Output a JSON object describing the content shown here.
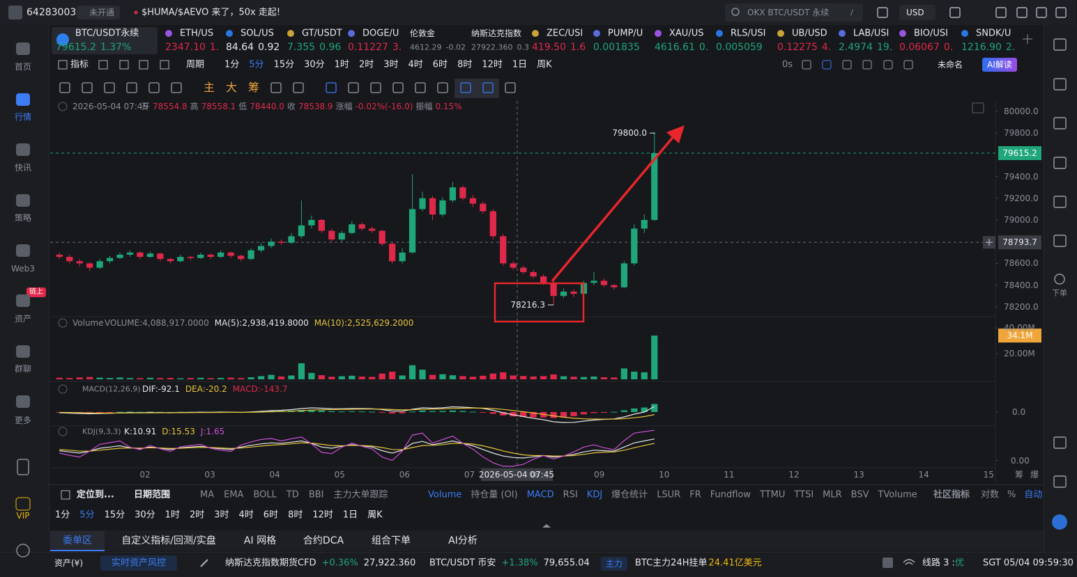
{
  "topbar": {
    "account": "64283003",
    "status": "未开通",
    "news": "$HUMA/$AEVO 来了，50x 走起!",
    "search": "OKX BTC/USDT 永续",
    "search_key": "/",
    "currency": "USD"
  },
  "sidebar": {
    "items": [
      "首页",
      "行情",
      "快讯",
      "策略",
      "Web3",
      "资产",
      "群聊",
      "更多",
      "VIP"
    ],
    "badge": "链上"
  },
  "tickers": [
    {
      "name": "BTC/USDT永续",
      "price": "79615.2",
      "change": "1.37%",
      "color": "#1fa67a"
    },
    {
      "name": "ETH/US",
      "price": "2347.10",
      "change": "1.",
      "color": "#e0294a"
    },
    {
      "name": "SOL/US",
      "price": "84.64",
      "change": "0.92",
      "color": "#e6e8eb"
    },
    {
      "name": "GT/USDT",
      "price": "7.355",
      "change": "0.96",
      "color": "#1fa67a"
    },
    {
      "name": "DOGE/U",
      "price": "0.11227",
      "change": "3.",
      "color": "#e0294a"
    },
    {
      "name": "伦敦金",
      "price": "4612.29",
      "change": "-0.02",
      "color": "#8a8f98"
    },
    {
      "name": "纳斯达克指数",
      "price": "27922.360",
      "change": "0.3",
      "color": "#8a8f98"
    },
    {
      "name": "ZEC/USI",
      "price": "419.50",
      "change": "1.6",
      "color": "#e0294a"
    },
    {
      "name": "PUMP/U",
      "price": "0.001835",
      "change": "",
      "color": "#1fa67a"
    },
    {
      "name": "XAU/US",
      "price": "4616.61",
      "change": "0.",
      "color": "#1fa67a"
    },
    {
      "name": "RLS/USI",
      "price": "0.005059",
      "change": "",
      "color": "#1fa67a"
    },
    {
      "name": "UB/USD",
      "price": "0.12275",
      "change": "4.",
      "color": "#e0294a"
    },
    {
      "name": "LAB/USI",
      "price": "2.4974",
      "change": "19.",
      "color": "#1fa67a"
    },
    {
      "name": "BIO/USI",
      "price": "0.06067",
      "change": "0.",
      "color": "#e0294a"
    },
    {
      "name": "SNDK/U",
      "price": "1216.90",
      "change": "2.",
      "color": "#1fa67a"
    }
  ],
  "period_bar": {
    "indicator": "指标",
    "period": "周期",
    "periods": [
      "1分",
      "5分",
      "15分",
      "30分",
      "1时",
      "2时",
      "3时",
      "4时",
      "6时",
      "8时",
      "12时",
      "1日",
      "周K"
    ],
    "refresh": "0s",
    "layout": "未命名",
    "ai": "AI解读"
  },
  "draw_tools": [
    "主",
    "大",
    "筹"
  ],
  "ohlc_header": {
    "time": "2026-05-04 07:45",
    "fields": [
      [
        "开",
        "78554.8"
      ],
      [
        "高",
        "78558.1"
      ],
      [
        "低",
        "78440.0"
      ],
      [
        "收",
        "78538.9"
      ],
      [
        "涨幅",
        "-0.02%(-16.0)"
      ],
      [
        "振幅",
        "0.15%"
      ]
    ]
  },
  "chart_data": {
    "type": "candlestick",
    "up_color": "#1fa67a",
    "down_color": "#e0294a",
    "ohlc": [
      [
        78680,
        78700,
        78640,
        78660
      ],
      [
        78660,
        78680,
        78600,
        78620
      ],
      [
        78620,
        78640,
        78570,
        78600
      ],
      [
        78600,
        78610,
        78530,
        78560
      ],
      [
        78560,
        78640,
        78550,
        78620
      ],
      [
        78620,
        78670,
        78600,
        78650
      ],
      [
        78650,
        78700,
        78640,
        78680
      ],
      [
        78680,
        78720,
        78660,
        78700
      ],
      [
        78700,
        78710,
        78640,
        78660
      ],
      [
        78660,
        78710,
        78650,
        78690
      ],
      [
        78690,
        78700,
        78620,
        78640
      ],
      [
        78640,
        78650,
        78600,
        78620
      ],
      [
        78620,
        78680,
        78610,
        78660
      ],
      [
        78660,
        78670,
        78630,
        78650
      ],
      [
        78650,
        78700,
        78640,
        78680
      ],
      [
        78680,
        78690,
        78640,
        78660
      ],
      [
        78660,
        78720,
        78650,
        78700
      ],
      [
        78700,
        78710,
        78650,
        78670
      ],
      [
        78670,
        78680,
        78620,
        78640
      ],
      [
        78640,
        78740,
        78630,
        78720
      ],
      [
        78720,
        78790,
        78700,
        78760
      ],
      [
        78760,
        78830,
        78740,
        78800
      ],
      [
        78800,
        78820,
        78770,
        78790
      ],
      [
        78790,
        78880,
        78780,
        78850
      ],
      [
        78850,
        79180,
        78830,
        78950
      ],
      [
        78950,
        79040,
        78920,
        79000
      ],
      [
        79000,
        79010,
        78880,
        78900
      ],
      [
        78900,
        78920,
        78800,
        78820
      ],
      [
        78820,
        78900,
        78800,
        78880
      ],
      [
        78880,
        78990,
        78870,
        78960
      ],
      [
        78960,
        78980,
        78900,
        78920
      ],
      [
        78920,
        78940,
        78880,
        78900
      ],
      [
        78900,
        78910,
        78760,
        78780
      ],
      [
        78780,
        78800,
        78600,
        78620
      ],
      [
        78620,
        78740,
        78600,
        78700
      ],
      [
        78700,
        79420,
        78690,
        79100
      ],
      [
        79100,
        79260,
        79080,
        79200
      ],
      [
        79200,
        79220,
        79000,
        79050
      ],
      [
        79050,
        79210,
        79030,
        79180
      ],
      [
        79180,
        79350,
        79160,
        79300
      ],
      [
        79300,
        79320,
        79180,
        79200
      ],
      [
        79200,
        79230,
        79120,
        79150
      ],
      [
        79150,
        79170,
        79060,
        79080
      ],
      [
        79080,
        79100,
        78820,
        78850
      ],
      [
        78850,
        78870,
        78580,
        78600
      ],
      [
        78600,
        78620,
        78540,
        78560
      ],
      [
        78560,
        78580,
        78500,
        78520
      ],
      [
        78520,
        78540,
        78460,
        78480
      ],
      [
        78480,
        78500,
        78400,
        78420
      ],
      [
        78420,
        78440,
        78216.3,
        78300
      ],
      [
        78300,
        78370,
        78280,
        78340
      ],
      [
        78340,
        78360,
        78290,
        78320
      ],
      [
        78320,
        78440,
        78300,
        78420
      ],
      [
        78420,
        78520,
        78400,
        78440
      ],
      [
        78440,
        78460,
        78380,
        78400
      ],
      [
        78400,
        78410,
        78360,
        78380
      ],
      [
        78380,
        78620,
        78370,
        78600
      ],
      [
        78600,
        78960,
        78580,
        78920
      ],
      [
        78920,
        79050,
        78880,
        79000
      ],
      [
        79000,
        79800,
        78990,
        79615.2
      ]
    ],
    "ylim": [
      78109,
      80096
    ],
    "yticks": [
      {
        "value": 80000,
        "label": "80000.0"
      },
      {
        "value": 79800,
        "label": "79800.0"
      },
      {
        "value": 79400,
        "label": "79400.0"
      },
      {
        "value": 79200,
        "label": "79200.0"
      },
      {
        "value": 79000,
        "label": "79000.0"
      },
      {
        "value": 78600,
        "label": "78600.0"
      },
      {
        "value": 78400,
        "label": "78400.0"
      },
      {
        "value": 78200,
        "label": "78200.0"
      }
    ],
    "current_price": 79615.2,
    "crosshair": {
      "price": 78793.7,
      "time": "2026-05-04 07:45"
    },
    "annotations": [
      {
        "value": 79800,
        "label": "79800.0"
      },
      {
        "value": 78216.3,
        "label": "78216.3"
      }
    ],
    "x_labels": [
      "02",
      "03",
      "04",
      "05",
      "06",
      "07",
      "08",
      "09",
      "10",
      "11",
      "12",
      "13",
      "14",
      "15"
    ],
    "corner_labels": [
      "筹",
      "爆"
    ],
    "volume": {
      "title": "Volume",
      "header": [
        "VOLUME:4,088,917.0000",
        "MA(5):2,938,419.8000",
        "MA(10):2,525,629.2000"
      ],
      "values": [
        1200000,
        1000000,
        1500000,
        1800000,
        1300000,
        1100000,
        1400000,
        1000000,
        900000,
        1200000,
        1000000,
        1100000,
        800000,
        1000000,
        1200000,
        900000,
        1100000,
        1300000,
        1000000,
        1600000,
        2500000,
        3500000,
        2200000,
        3000000,
        12500000,
        5000000,
        3200000,
        2000000,
        2400000,
        2800000,
        2100000,
        1900000,
        4500000,
        6000000,
        3000000,
        11000000,
        7500000,
        3500000,
        4000000,
        3200000,
        2500000,
        2000000,
        2800000,
        4500000,
        5500000,
        3000000,
        2600000,
        2200000,
        2500000,
        3800000,
        2400000,
        2000000,
        1800000,
        2200000,
        1600000,
        1400000,
        8500000,
        6000000,
        5500000,
        34100000
      ],
      "ylim": [
        0,
        45000000
      ],
      "yticks": [
        {
          "value": 20000000,
          "label": "20.00M"
        },
        {
          "value": 40000000,
          "label": "40.00M"
        }
      ],
      "current_label": {
        "value": 34100000,
        "label": "34.1M"
      }
    },
    "macd": {
      "title": "MACD(12,26,9)",
      "header": [
        "DIF:-92.1",
        "DEA:-20.2",
        "MACD:-143.7"
      ],
      "dif": [
        -10,
        -15,
        -20,
        -25,
        -22,
        -18,
        -12,
        -8,
        -10,
        -6,
        -8,
        -10,
        -6,
        -5,
        -2,
        -4,
        0,
        -2,
        -5,
        2,
        10,
        20,
        25,
        35,
        50,
        60,
        55,
        48,
        46,
        50,
        50,
        48,
        35,
        15,
        12,
        40,
        60,
        55,
        62,
        75,
        70,
        62,
        52,
        25,
        -10,
        -40,
        -65,
        -90,
        -110,
        -140,
        -150,
        -148,
        -130,
        -115,
        -105,
        -98,
        -70,
        -30,
        0,
        80
      ],
      "dea": [
        -5,
        -7,
        -10,
        -13,
        -15,
        -15,
        -14,
        -13,
        -12,
        -11,
        -10,
        -10,
        -9,
        -8,
        -7,
        -6,
        -5,
        -4,
        -4,
        -3,
        0,
        4,
        8,
        13,
        20,
        28,
        33,
        36,
        38,
        40,
        42,
        43,
        41,
        36,
        31,
        33,
        38,
        42,
        46,
        52,
        55,
        57,
        56,
        50,
        38,
        22,
        5,
        -14,
        -33,
        -55,
        -74,
        -89,
        -97,
        -101,
        -102,
        -101,
        -95,
        -82,
        -65,
        -36
      ],
      "hist": [
        -5,
        -8,
        -10,
        -12,
        -7,
        -3,
        2,
        5,
        2,
        5,
        2,
        0,
        3,
        3,
        5,
        2,
        5,
        2,
        -1,
        5,
        10,
        16,
        17,
        22,
        30,
        32,
        22,
        12,
        8,
        10,
        8,
        5,
        -6,
        -21,
        -19,
        7,
        22,
        13,
        16,
        23,
        15,
        5,
        -4,
        -25,
        -48,
        -62,
        -70,
        -76,
        -77,
        -85,
        -76,
        -59,
        -33,
        -14,
        -3,
        3,
        25,
        52,
        65,
        116
      ],
      "ylim": [
        -180,
        400
      ],
      "yticks": [
        {
          "value": 0,
          "label": "0.0"
        }
      ]
    },
    "kdj": {
      "title": "KDJ(9,3,3)",
      "header": [
        "K:10.91",
        "D:15.53",
        "J:1.65"
      ],
      "k": [
        40,
        35,
        30,
        38,
        50,
        55,
        60,
        52,
        48,
        55,
        50,
        45,
        52,
        55,
        58,
        52,
        48,
        45,
        55,
        62,
        68,
        72,
        70,
        75,
        80,
        70,
        55,
        50,
        58,
        65,
        60,
        55,
        40,
        30,
        42,
        70,
        78,
        65,
        72,
        80,
        70,
        60,
        45,
        30,
        18,
        12,
        10,
        15,
        20,
        14,
        18,
        25,
        35,
        42,
        40,
        38,
        55,
        72,
        80,
        88
      ],
      "d": [
        45,
        42,
        38,
        38,
        42,
        46,
        50,
        51,
        50,
        52,
        51,
        49,
        50,
        52,
        54,
        53,
        51,
        49,
        51,
        55,
        59,
        63,
        65,
        68,
        72,
        71,
        66,
        61,
        60,
        62,
        61,
        59,
        53,
        45,
        44,
        53,
        61,
        62,
        65,
        70,
        70,
        67,
        60,
        50,
        39,
        30,
        23,
        20,
        20,
        18,
        18,
        20,
        25,
        31,
        34,
        35,
        42,
        52,
        61,
        70
      ],
      "j": [
        30,
        21,
        14,
        38,
        66,
        73,
        80,
        54,
        44,
        61,
        48,
        37,
        56,
        61,
        66,
        50,
        42,
        37,
        63,
        76,
        86,
        90,
        80,
        89,
        96,
        68,
        33,
        28,
        54,
        71,
        58,
        47,
        14,
        0,
        38,
        104,
        112,
        71,
        86,
        100,
        70,
        46,
        15,
        -10,
        -24,
        -24,
        -16,
        5,
        20,
        6,
        18,
        35,
        55,
        64,
        52,
        44,
        81,
        112,
        118,
        124
      ],
      "ylim": [
        -30,
        130
      ],
      "yticks": [
        {
          "value": 0,
          "label": "0.00"
        }
      ]
    }
  },
  "indicator_bar": {
    "locate": "定位到...",
    "date_range": "日期范围",
    "main": [
      "MA",
      "EMA",
      "BOLL",
      "TD",
      "BBI",
      "主力大单跟踪"
    ],
    "sub": [
      "Volume",
      "持仓量 (OI)",
      "MACD",
      "RSI",
      "KDJ",
      "爆仓统计",
      "LSUR",
      "FR",
      "Fundflow",
      "TTMU",
      "TTSI",
      "MLR",
      "BSV",
      "TVolume"
    ],
    "community": "社区指标",
    "options": [
      "对数",
      "%",
      "自动"
    ]
  },
  "timeframes": [
    "1分",
    "5分",
    "15分",
    "30分",
    "1时",
    "2时",
    "3时",
    "4时",
    "6时",
    "8时",
    "12时",
    "1日",
    "周K"
  ],
  "bottom_tabs": [
    "委单区",
    "自定义指标/回测/实盘",
    "AI 网格",
    "合约DCA",
    "组合下单",
    "AI分析"
  ],
  "status_bar": {
    "assets": "资产(¥)",
    "risk": "实时资产风控",
    "items": [
      {
        "name": "纳斯达克指数期货CFD",
        "change": "+0.36%",
        "price": "27,922.360"
      },
      {
        "name": "BTC/USDT 币安",
        "change": "+1.38%",
        "price": "79,655.04"
      }
    ],
    "main_tag": "主力",
    "main_text": "BTC主力24H挂单",
    "main_value": "24.41亿美元",
    "line": "线路 3 : ",
    "line_quality": "优",
    "time": "SGT 05/04 09:59:30"
  },
  "right_sidebar": {
    "order": "下单"
  }
}
